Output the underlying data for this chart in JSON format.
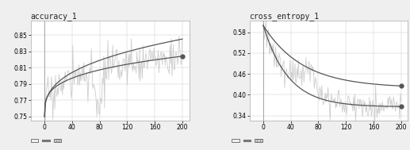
{
  "acc_title": "accuracy_1",
  "entropy_title": "cross_entropy_1",
  "xlim": [
    -20,
    210
  ],
  "xticks": [
    0,
    40,
    80,
    120,
    160,
    200
  ],
  "acc_ylim": [
    0.745,
    0.868
  ],
  "acc_yticks": [
    0.75,
    0.77,
    0.79,
    0.81,
    0.83,
    0.85
  ],
  "entropy_ylim": [
    0.325,
    0.615
  ],
  "entropy_yticks": [
    0.34,
    0.4,
    0.46,
    0.52,
    0.58
  ],
  "bg_color": "#efefef",
  "plot_bg": "#ffffff",
  "grid_color": "#cccccc",
  "dark_line_color": "#555555",
  "light_line_color": "#c8c8c8",
  "vline_color": "#aaaaaa",
  "endpoint_color": "#555555",
  "title_fontsize": 7,
  "tick_fontsize": 5.5
}
